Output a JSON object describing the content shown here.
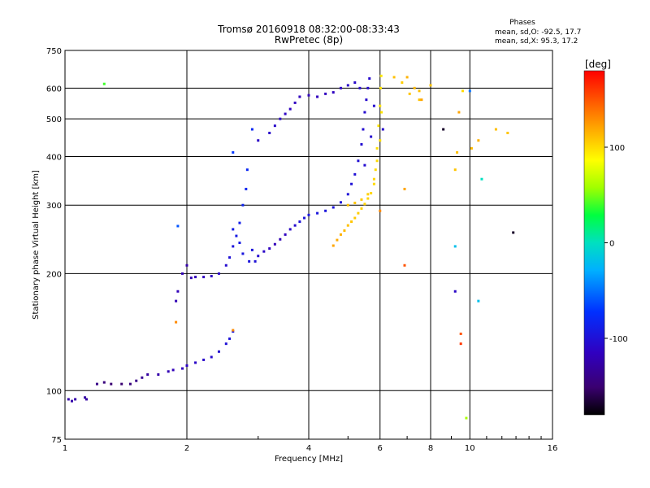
{
  "chart_data": {
    "type": "scatter",
    "title": "Tromsø 20160918 08:32:00-08:33:43",
    "subtitle": "RwPretec (8p)",
    "xlabel": "Frequency [MHz]",
    "ylabel": "Stationary phase Virtual Height [km]",
    "x_scale": "log",
    "y_scale": "log",
    "xlim": [
      1,
      16
    ],
    "ylim": [
      75,
      750
    ],
    "x_ticks": [
      1,
      2,
      4,
      6,
      8,
      10,
      16
    ],
    "y_ticks": [
      75,
      100,
      200,
      300,
      400,
      500,
      600,
      750
    ],
    "grid": true,
    "phase_info": {
      "heading": "Phases",
      "line_o": "mean, sd,O: -92.5, 17.7",
      "line_x": "mean, sd,X:  95.3, 17.2"
    },
    "colorbar": {
      "label": "[deg]",
      "range": [
        -180,
        180
      ],
      "ticks": [
        100,
        0,
        -100
      ],
      "colormap": "rainbow"
    },
    "series": [
      {
        "color_by_phase": true,
        "points": [
          [
            1.02,
            95,
            -125
          ],
          [
            1.04,
            94,
            -125
          ],
          [
            1.06,
            95,
            -125
          ],
          [
            1.12,
            96,
            -128
          ],
          [
            1.13,
            95,
            -128
          ],
          [
            1.2,
            104,
            -140
          ],
          [
            1.25,
            105,
            -145
          ],
          [
            1.3,
            104,
            -150
          ],
          [
            1.38,
            104,
            -150
          ],
          [
            1.45,
            104,
            -145
          ],
          [
            1.5,
            106,
            -140
          ],
          [
            1.55,
            108,
            -135
          ],
          [
            1.6,
            110,
            -130
          ],
          [
            1.7,
            110,
            -125
          ],
          [
            1.8,
            112,
            -120
          ],
          [
            1.85,
            113,
            -118
          ],
          [
            1.95,
            114,
            -115
          ],
          [
            2.0,
            116,
            -112
          ],
          [
            2.1,
            118,
            -110
          ],
          [
            2.2,
            120,
            -108
          ],
          [
            2.3,
            122,
            -106
          ],
          [
            2.4,
            126,
            -104
          ],
          [
            2.5,
            132,
            -100
          ],
          [
            2.55,
            136,
            -98
          ],
          [
            2.6,
            142,
            -96
          ],
          [
            1.88,
            170,
            -120
          ],
          [
            1.9,
            180,
            -118
          ],
          [
            1.95,
            200,
            -120
          ],
          [
            2.0,
            210,
            -125
          ],
          [
            2.05,
            195,
            -120
          ],
          [
            2.1,
            196,
            -118
          ],
          [
            2.2,
            196,
            -115
          ],
          [
            2.3,
            197,
            -112
          ],
          [
            2.4,
            200,
            -110
          ],
          [
            2.5,
            210,
            -105
          ],
          [
            2.55,
            220,
            -100
          ],
          [
            2.6,
            235,
            -98
          ],
          [
            2.65,
            250,
            -92
          ],
          [
            2.7,
            270,
            -88
          ],
          [
            2.75,
            300,
            -84
          ],
          [
            2.8,
            330,
            -82
          ],
          [
            2.82,
            370,
            -80
          ],
          [
            2.6,
            260,
            -90
          ],
          [
            2.7,
            240,
            -92
          ],
          [
            2.75,
            225,
            -95
          ],
          [
            2.85,
            215,
            -96
          ],
          [
            2.9,
            230,
            -97
          ],
          [
            2.95,
            215,
            -100
          ],
          [
            3.0,
            222,
            -105
          ],
          [
            3.1,
            228,
            -110
          ],
          [
            3.2,
            232,
            -115
          ],
          [
            3.3,
            238,
            -118
          ],
          [
            3.4,
            245,
            -120
          ],
          [
            3.5,
            252,
            -115
          ],
          [
            3.6,
            260,
            -110
          ],
          [
            3.7,
            266,
            -105
          ],
          [
            3.8,
            272,
            -100
          ],
          [
            3.9,
            278,
            -98
          ],
          [
            4.0,
            283,
            -95
          ],
          [
            4.2,
            286,
            -95
          ],
          [
            4.4,
            290,
            -96
          ],
          [
            4.6,
            296,
            -97
          ],
          [
            4.8,
            305,
            -98
          ],
          [
            5.0,
            320,
            -99
          ],
          [
            5.1,
            340,
            -100
          ],
          [
            5.2,
            360,
            -101
          ],
          [
            5.3,
            390,
            -102
          ],
          [
            5.4,
            430,
            -103
          ],
          [
            5.45,
            470,
            -104
          ],
          [
            5.5,
            520,
            -105
          ],
          [
            5.55,
            560,
            -106
          ],
          [
            5.6,
            600,
            -106
          ],
          [
            5.65,
            635,
            -106
          ],
          [
            3.4,
            500,
            -110
          ],
          [
            3.5,
            515,
            -112
          ],
          [
            3.6,
            530,
            -114
          ],
          [
            3.7,
            550,
            -115
          ],
          [
            3.8,
            570,
            -116
          ],
          [
            4.0,
            575,
            -117
          ],
          [
            4.2,
            570,
            -116
          ],
          [
            4.4,
            580,
            -115
          ],
          [
            4.6,
            585,
            -114
          ],
          [
            4.8,
            600,
            -112
          ],
          [
            5.0,
            610,
            -110
          ],
          [
            5.2,
            620,
            -108
          ],
          [
            5.35,
            600,
            -106
          ],
          [
            3.2,
            460,
            -108
          ],
          [
            3.3,
            480,
            -108
          ],
          [
            3.0,
            440,
            -110
          ],
          [
            5.5,
            380,
            -104
          ],
          [
            5.7,
            450,
            -105
          ],
          [
            5.8,
            540,
            -106
          ],
          [
            6.1,
            470,
            -106
          ],
          [
            4.6,
            236,
            120
          ],
          [
            4.7,
            244,
            118
          ],
          [
            4.8,
            252,
            115
          ],
          [
            4.9,
            258,
            112
          ],
          [
            5.0,
            266,
            110
          ],
          [
            5.1,
            272,
            108
          ],
          [
            5.2,
            278,
            106
          ],
          [
            5.3,
            286,
            105
          ],
          [
            5.4,
            294,
            104
          ],
          [
            5.5,
            302,
            103
          ],
          [
            5.6,
            312,
            102
          ],
          [
            5.7,
            322,
            101
          ],
          [
            5.8,
            340,
            100
          ],
          [
            5.85,
            370,
            99
          ],
          [
            5.9,
            420,
            98
          ],
          [
            5.95,
            480,
            97
          ],
          [
            6.0,
            540,
            96
          ],
          [
            6.02,
            600,
            95
          ],
          [
            6.04,
            645,
            94
          ],
          [
            5.0,
            300,
            110
          ],
          [
            5.2,
            304,
            108
          ],
          [
            5.4,
            310,
            106
          ],
          [
            5.6,
            320,
            104
          ],
          [
            5.8,
            350,
            102
          ],
          [
            5.9,
            390,
            100
          ],
          [
            6.0,
            440,
            98
          ],
          [
            6.05,
            520,
            96
          ],
          [
            7.0,
            640,
            115
          ],
          [
            7.3,
            600,
            112
          ],
          [
            7.5,
            590,
            110
          ],
          [
            8.0,
            610,
            108
          ],
          [
            9.4,
            520,
            120
          ],
          [
            10.5,
            440,
            115
          ],
          [
            10.1,
            420,
            112
          ],
          [
            9.3,
            410,
            110
          ],
          [
            9.2,
            370,
            108
          ],
          [
            6.5,
            640,
            110
          ],
          [
            6.8,
            620,
            105
          ],
          [
            7.1,
            580,
            108
          ],
          [
            7.5,
            560,
            110
          ],
          [
            1.25,
            615,
            40
          ],
          [
            1.9,
            265,
            -60
          ],
          [
            2.6,
            410,
            -70
          ],
          [
            2.9,
            470,
            -80
          ],
          [
            7.6,
            560,
            120
          ],
          [
            9.2,
            235,
            -20
          ],
          [
            10.0,
            590,
            -50
          ],
          [
            9.2,
            180,
            -110
          ],
          [
            8.6,
            470,
            -170
          ],
          [
            9.6,
            590,
            100
          ],
          [
            11.6,
            470,
            110
          ],
          [
            12.4,
            460,
            108
          ],
          [
            10.5,
            170,
            -20
          ],
          [
            9.8,
            85,
            60
          ],
          [
            12.8,
            255,
            -170
          ],
          [
            10.7,
            350,
            0
          ],
          [
            9.5,
            140,
            150
          ],
          [
            9.5,
            132,
            160
          ],
          [
            6.0,
            290,
            130
          ],
          [
            6.9,
            210,
            150
          ],
          [
            6.9,
            330,
            120
          ],
          [
            1.88,
            150,
            130
          ],
          [
            2.6,
            143,
            130
          ]
        ]
      }
    ]
  }
}
